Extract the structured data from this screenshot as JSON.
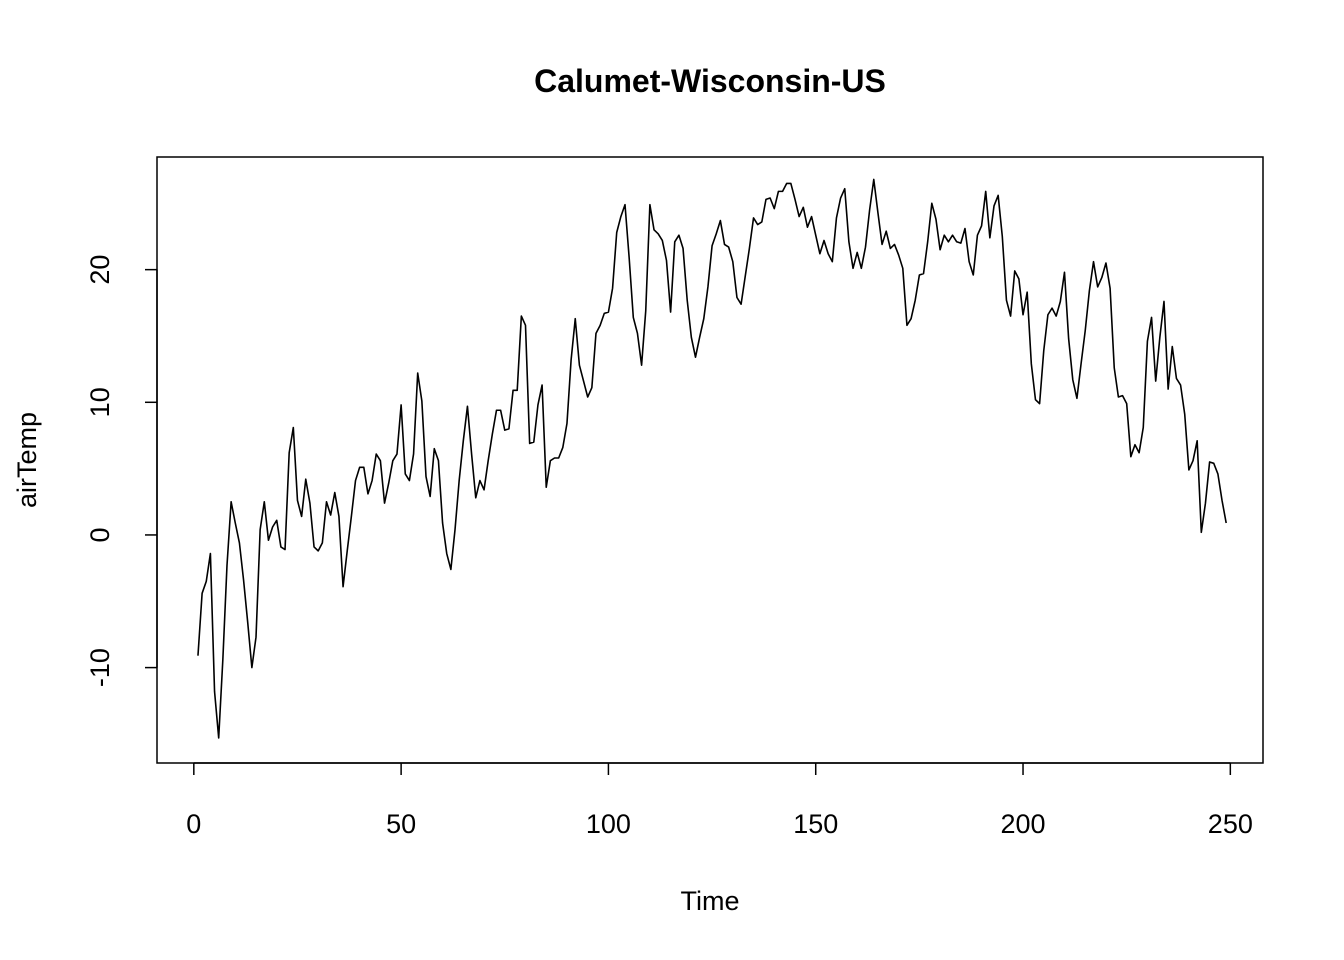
{
  "chart_data": {
    "type": "line",
    "title": "Calumet-Wisconsin-US",
    "xlabel": "Time",
    "ylabel": "airTemp",
    "xlim": [
      1,
      248
    ],
    "ylim": [
      -15.5,
      26.8
    ],
    "x_ticks": [
      0,
      50,
      100,
      150,
      200,
      250
    ],
    "y_ticks": [
      -10,
      0,
      10,
      20
    ],
    "x_tick_labels": [
      "0",
      "50",
      "100",
      "150",
      "200",
      "250"
    ],
    "y_tick_labels": [
      "-10",
      "0",
      "10",
      "20"
    ],
    "grid": false,
    "legend": "none",
    "series": [
      {
        "color": "#000000",
        "x_start": 1,
        "x_step": 1,
        "values": [
          -9.1,
          -4.4,
          -3.5,
          -1.4,
          -11.8,
          -15.3,
          -9.4,
          -2.3,
          2.5,
          0.9,
          -0.6,
          -3.4,
          -6.6,
          -10.0,
          -7.7,
          0.4,
          2.5,
          -0.4,
          0.6,
          1.1,
          -0.9,
          -1.1,
          6.2,
          8.1,
          2.6,
          1.4,
          4.2,
          2.4,
          -0.9,
          -1.2,
          -0.6,
          2.5,
          1.5,
          3.2,
          1.4,
          -3.9,
          -1.2,
          1.4,
          4.1,
          5.1,
          5.1,
          3.1,
          4.1,
          6.1,
          5.6,
          2.4,
          3.9,
          5.6,
          6.1,
          9.8,
          4.6,
          4.1,
          6.1,
          12.2,
          10.1,
          4.4,
          2.9,
          6.5,
          5.6,
          0.9,
          -1.4,
          -2.6,
          0.4,
          4.1,
          7.1,
          9.7,
          6.1,
          2.8,
          4.1,
          3.4,
          5.6,
          7.6,
          9.4,
          9.4,
          7.9,
          8.0,
          10.9,
          10.9,
          16.5,
          15.8,
          6.9,
          7.0,
          9.8,
          11.3,
          3.6,
          5.6,
          5.8,
          5.8,
          6.6,
          8.4,
          13.2,
          16.3,
          12.8,
          11.6,
          10.4,
          11.1,
          15.2,
          15.8,
          16.7,
          16.8,
          18.6,
          22.8,
          24.0,
          24.9,
          20.9,
          16.4,
          15.2,
          12.8,
          16.9,
          24.9,
          23.0,
          22.7,
          22.2,
          20.7,
          16.8,
          22.1,
          22.6,
          21.6,
          17.7,
          14.9,
          13.4,
          14.9,
          16.3,
          18.7,
          21.8,
          22.7,
          23.7,
          21.9,
          21.7,
          20.6,
          17.9,
          17.4,
          19.5,
          21.6,
          23.9,
          23.4,
          23.6,
          25.3,
          25.4,
          24.6,
          25.9,
          25.9,
          26.5,
          26.5,
          25.3,
          24.0,
          24.7,
          23.2,
          24.0,
          22.6,
          21.2,
          22.2,
          21.2,
          20.6,
          23.9,
          25.4,
          26.1,
          22.1,
          20.1,
          21.3,
          20.1,
          21.7,
          24.5,
          26.8,
          24.3,
          21.9,
          22.9,
          21.6,
          21.9,
          21.1,
          20.1,
          15.8,
          16.3,
          17.7,
          19.6,
          19.7,
          22.1,
          25.0,
          23.8,
          21.5,
          22.6,
          22.1,
          22.6,
          22.1,
          22.0,
          23.1,
          20.6,
          19.6,
          22.6,
          23.3,
          25.9,
          22.4,
          24.8,
          25.6,
          22.5,
          17.7,
          16.5,
          19.9,
          19.3,
          16.6,
          18.3,
          12.9,
          10.2,
          9.9,
          13.9,
          16.6,
          17.1,
          16.5,
          17.6,
          19.8,
          14.8,
          11.7,
          10.3,
          12.9,
          15.4,
          18.4,
          20.6,
          18.7,
          19.4,
          20.5,
          18.6,
          12.6,
          10.4,
          10.5,
          9.9,
          5.9,
          6.8,
          6.2,
          8.1,
          14.6,
          16.4,
          11.6,
          14.9,
          17.6,
          11.0,
          14.2,
          11.8,
          11.3,
          9.1,
          4.9,
          5.6,
          7.1,
          0.2,
          2.4,
          5.5,
          5.4,
          4.6,
          2.6,
          0.9
        ]
      }
    ]
  }
}
